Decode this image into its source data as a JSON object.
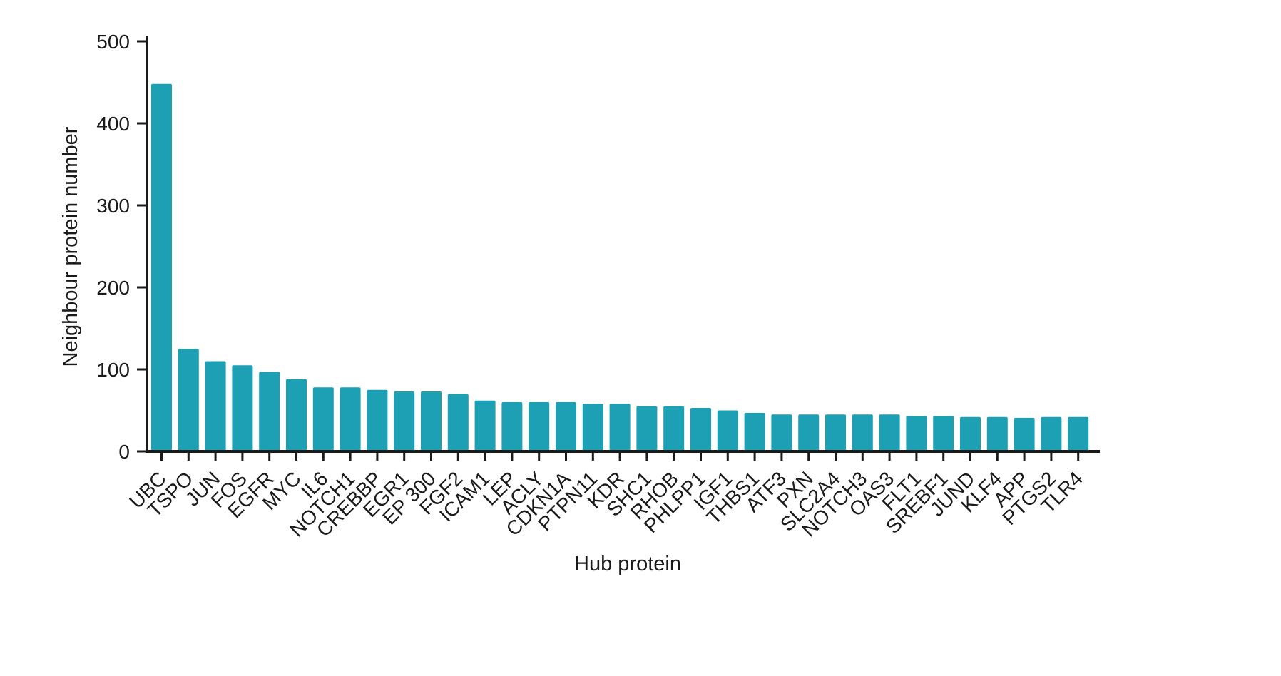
{
  "chart_data": {
    "type": "bar",
    "title": "",
    "xlabel": "Hub protein",
    "ylabel": "Neighbour protein number",
    "ylim": [
      0,
      500
    ],
    "yticks": [
      0,
      100,
      200,
      300,
      400,
      500
    ],
    "grid": false,
    "legend": "none",
    "bar_color": "#1D9FB4",
    "axis_color": "#1a1a1a",
    "categories": [
      "UBC",
      "TSPO",
      "JUN",
      "FOS",
      "EGFR",
      "MYC",
      "IL6",
      "NOTCH1",
      "CREBBP",
      "EGR1",
      "EP 300",
      "FGF2",
      "ICAM1",
      "LEP",
      "ACLY",
      "CDKN1A",
      "PTPN11",
      "KDR",
      "SHC1",
      "RHOB",
      "PHLPP1",
      "IGF1",
      "THBS1",
      "ATF3",
      "PXN",
      "SLC2A4",
      "NOTCH3",
      "OAS3",
      "FLT1",
      "SREBF1",
      "JUND",
      "KLF4",
      "APP",
      "PTGS2",
      "TLR4"
    ],
    "values": [
      448,
      125,
      110,
      105,
      97,
      88,
      78,
      78,
      75,
      73,
      73,
      70,
      62,
      60,
      60,
      60,
      58,
      58,
      55,
      55,
      53,
      50,
      47,
      45,
      45,
      45,
      45,
      45,
      43,
      43,
      42,
      42,
      41,
      42,
      42
    ]
  }
}
